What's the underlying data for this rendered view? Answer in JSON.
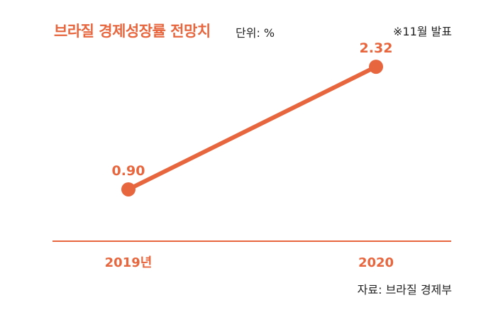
{
  "colors": {
    "accent": "#e8663e",
    "text": "#222222",
    "background": "#ffffff"
  },
  "header": {
    "title": "브라질 경제성장률 전망치",
    "unit": "단위: %",
    "note": "※11월 발표"
  },
  "footer": {
    "source": "자료: 브라질 경제부"
  },
  "chart_data": {
    "type": "line",
    "title": "브라질 경제성장률 전망치",
    "unit": "%",
    "categories": [
      "2019년",
      "2020"
    ],
    "series": [
      {
        "values": [
          0.9,
          2.32
        ],
        "labels": [
          "0.90",
          "2.32"
        ]
      }
    ],
    "ylim": [
      0.3,
      2.6
    ],
    "grid": false,
    "legend": "none"
  }
}
